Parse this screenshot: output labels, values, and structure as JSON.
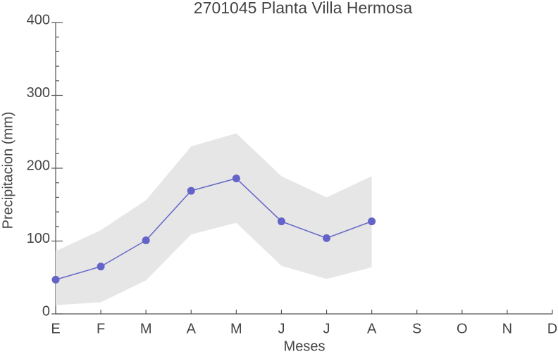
{
  "chart_data": {
    "type": "line",
    "title": "2701045 Planta Villa Hermosa",
    "xlabel": "Meses",
    "ylabel": "Precipitacion (mm)",
    "categories": [
      "E",
      "F",
      "M",
      "A",
      "M",
      "J",
      "J",
      "A",
      "S",
      "O",
      "N",
      "D"
    ],
    "series": [
      {
        "color": "#6464c8",
        "values": [
          47,
          65,
          101,
          169,
          186,
          127,
          104,
          127,
          null,
          null,
          null,
          null
        ]
      }
    ],
    "band": {
      "color": "#e6e6e6",
      "lower": [
        12,
        16,
        46,
        109,
        125,
        66,
        48,
        64,
        null,
        null,
        null,
        null
      ],
      "upper": [
        86,
        115,
        156,
        230,
        248,
        189,
        160,
        189,
        null,
        null,
        null,
        null
      ]
    },
    "ylim": [
      0,
      400
    ],
    "yticks": [
      0,
      100,
      200,
      300,
      400
    ],
    "yminorticks": [
      20,
      40,
      60,
      80,
      120,
      140,
      160,
      180,
      220,
      240,
      260,
      280,
      320,
      340,
      360,
      380
    ]
  }
}
